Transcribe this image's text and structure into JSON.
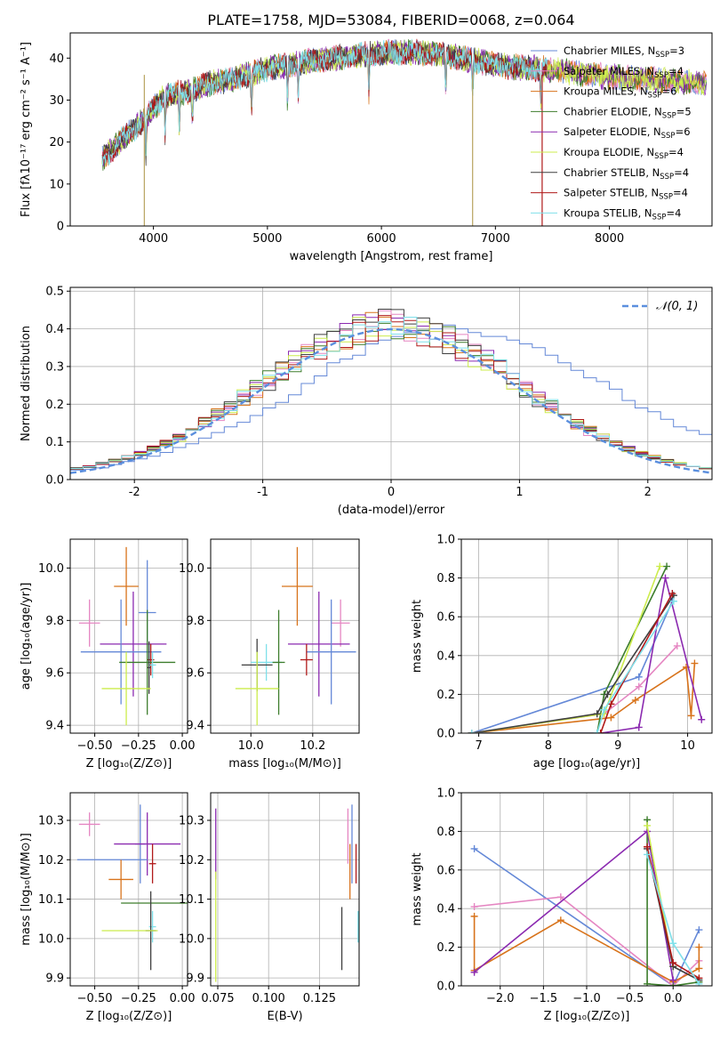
{
  "figure": {
    "title": "PLATE=1758, MJD=53084, FIBERID=0068, z=0.064"
  },
  "chart_data": [
    {
      "id": "spectrum",
      "type": "line",
      "xlabel": "wavelength [Angstrom, rest frame]",
      "ylabel": "Flux [fλ10⁻¹⁷ erg cm⁻² s⁻¹ A⁻¹]",
      "xlim": [
        3270,
        8900
      ],
      "ylim": [
        0,
        46
      ],
      "xticks": [
        4000,
        5000,
        6000,
        7000,
        8000
      ],
      "yticks": [
        0,
        10,
        20,
        30,
        40
      ],
      "grid": false,
      "legend_position": "right",
      "continuum": {
        "x": [
          3550,
          3700,
          3900,
          4100,
          4300,
          4500,
          4700,
          5000,
          5300,
          5600,
          5900,
          6200,
          6500,
          6800,
          7100,
          7400,
          7700,
          8000,
          8300,
          8600,
          8850
        ],
        "y": [
          16,
          20,
          25,
          31,
          32,
          34,
          35,
          37.5,
          39,
          40,
          41,
          41.5,
          41,
          39.5,
          38,
          37.5,
          36.5,
          35.5,
          35,
          34.5,
          34
        ]
      },
      "absorption_lines": [
        3934,
        4102,
        4227,
        4341,
        4861,
        5175,
        5270,
        5890,
        6563,
        6800,
        7400
      ],
      "series": [
        {
          "name": "Chabrier MILES, N",
          "sub": "SSP",
          "value": "=3",
          "color": "#6488d7"
        },
        {
          "name": "Salpeter MILES, N",
          "sub": "SSP",
          "value": "=4",
          "color": "#e586c2"
        },
        {
          "name": "Kroupa MILES, N",
          "sub": "SSP",
          "value": "=6",
          "color": "#d8731b"
        },
        {
          "name": "Chabrier ELODIE, N",
          "sub": "SSP",
          "value": "=5",
          "color": "#3d7d2c"
        },
        {
          "name": "Salpeter ELODIE, N",
          "sub": "SSP",
          "value": "=6",
          "color": "#8b2ab0"
        },
        {
          "name": "Kroupa ELODIE, N",
          "sub": "SSP",
          "value": "=4",
          "color": "#ccec4c"
        },
        {
          "name": "Chabrier STELIB, N",
          "sub": "SSP",
          "value": "=4",
          "color": "#3f3f3f"
        },
        {
          "name": "Salpeter STELIB, N",
          "sub": "SSP",
          "value": "=4",
          "color": "#b01a1a"
        },
        {
          "name": "Kroupa STELIB, N",
          "sub": "SSP",
          "value": "=4",
          "color": "#7fe0ea"
        }
      ]
    },
    {
      "id": "residual-histogram",
      "type": "bar",
      "xlabel": "(data-model)/error",
      "ylabel": "Normed distribution",
      "xlim": [
        -2.5,
        2.5
      ],
      "ylim": [
        0,
        0.51
      ],
      "xticks": [
        -2,
        -1,
        0,
        1,
        2
      ],
      "yticks": [
        0.0,
        0.1,
        0.2,
        0.3,
        0.4,
        0.5
      ],
      "grid": true,
      "bin_width": 0.1,
      "bin_start": -2.5,
      "reference_curve": {
        "label": "𝒩(0, 1)",
        "mean": 0,
        "sigma": 1,
        "color": "#5b8fde"
      },
      "legend_position": "top-right",
      "series": [
        {
          "name": "Chabrier MILES",
          "color": "#6488d7",
          "values": [
            0.025,
            0.027,
            0.031,
            0.04,
            0.048,
            0.055,
            0.062,
            0.072,
            0.085,
            0.095,
            0.11,
            0.125,
            0.14,
            0.152,
            0.17,
            0.19,
            0.205,
            0.225,
            0.255,
            0.275,
            0.31,
            0.32,
            0.33,
            0.36,
            0.37,
            0.38,
            0.39,
            0.395,
            0.4,
            0.41,
            0.4,
            0.39,
            0.38,
            0.38,
            0.37,
            0.36,
            0.35,
            0.33,
            0.31,
            0.29,
            0.27,
            0.26,
            0.24,
            0.21,
            0.19,
            0.18,
            0.16,
            0.14,
            0.13,
            0.12
          ]
        }
      ]
    },
    {
      "id": "age-vs-Z",
      "type": "scatter",
      "xlabel": "Z [log₁₀(Z/Z⊙)]",
      "ylabel": "age  [log₁₀(age/yr)]",
      "xlim": [
        -0.64,
        0.03
      ],
      "ylim": [
        9.37,
        10.11
      ],
      "xticks": [
        -0.5,
        -0.25,
        0.0
      ],
      "xticklabels": [
        "−0.50",
        "−0.25",
        "0.00"
      ],
      "yticks": [
        9.4,
        9.6,
        9.8,
        10.0
      ],
      "grid": true,
      "points": [
        {
          "x": -0.32,
          "y": 9.93,
          "xerr": 0.07,
          "yerr": 0.15,
          "color": "#d8731b"
        },
        {
          "x": -0.2,
          "y": 9.83,
          "xerr": 0.05,
          "yerr": 0.2,
          "color": "#6488d7"
        },
        {
          "x": -0.53,
          "y": 9.79,
          "xerr": 0.06,
          "yerr": 0.09,
          "color": "#e586c2"
        },
        {
          "x": -0.28,
          "y": 9.71,
          "xerr": 0.19,
          "yerr": 0.2,
          "color": "#8b2ab0"
        },
        {
          "x": -0.35,
          "y": 9.68,
          "xerr": 0.23,
          "yerr": 0.2,
          "color": "#6488d7"
        },
        {
          "x": -0.18,
          "y": 9.65,
          "xerr": 0.02,
          "yerr": 0.06,
          "color": "#b01a1a"
        },
        {
          "x": -0.2,
          "y": 9.64,
          "xerr": 0.16,
          "yerr": 0.2,
          "color": "#3d7d2c"
        },
        {
          "x": -0.17,
          "y": 9.63,
          "xerr": 0.02,
          "yerr": 0.05,
          "color": "#7fe0ea"
        },
        {
          "x": -0.19,
          "y": 9.62,
          "xerr": 0.01,
          "yerr": 0.1,
          "color": "#3f3f3f"
        },
        {
          "x": -0.32,
          "y": 9.54,
          "xerr": 0.14,
          "yerr": 0.14,
          "color": "#ccec4c"
        }
      ]
    },
    {
      "id": "age-vs-mass",
      "type": "scatter",
      "xlabel": "mass [log₁₀(M/M⊙)]",
      "ylabel": "",
      "xlim": [
        9.87,
        10.35
      ],
      "ylim": [
        9.37,
        10.11
      ],
      "xticks": [
        10.0,
        10.2
      ],
      "xticklabels": [
        "10.0",
        "10.2"
      ],
      "yticks": [
        9.4,
        9.6,
        9.8,
        10.0
      ],
      "grid": true,
      "points": [
        {
          "x": 10.15,
          "y": 9.93,
          "xerr": 0.05,
          "yerr": 0.15,
          "color": "#d8731b"
        },
        {
          "x": 10.29,
          "y": 9.79,
          "xerr": 0.03,
          "yerr": 0.09,
          "color": "#e586c2"
        },
        {
          "x": 10.22,
          "y": 9.71,
          "xerr": 0.1,
          "yerr": 0.2,
          "color": "#8b2ab0"
        },
        {
          "x": 10.26,
          "y": 9.68,
          "xerr": 0.08,
          "yerr": 0.2,
          "color": "#6488d7"
        },
        {
          "x": 10.18,
          "y": 9.65,
          "xerr": 0.02,
          "yerr": 0.06,
          "color": "#b01a1a"
        },
        {
          "x": 10.05,
          "y": 9.64,
          "xerr": 0.05,
          "yerr": 0.07,
          "color": "#7fe0ea"
        },
        {
          "x": 10.09,
          "y": 9.64,
          "xerr": 0.02,
          "yerr": 0.2,
          "color": "#3d7d2c"
        },
        {
          "x": 10.02,
          "y": 9.63,
          "xerr": 0.05,
          "yerr": 0.1,
          "color": "#3f3f3f"
        },
        {
          "x": 10.02,
          "y": 9.54,
          "xerr": 0.07,
          "yerr": 0.14,
          "color": "#ccec4c"
        }
      ]
    },
    {
      "id": "mass-weight-vs-age",
      "type": "line",
      "xlabel": "age  [log₁₀(age/yr)]",
      "ylabel": "mass weight",
      "xlim": [
        6.75,
        10.35
      ],
      "ylim": [
        0,
        1.0
      ],
      "xticks": [
        7,
        8,
        9,
        10
      ],
      "yticks": [
        0.0,
        0.2,
        0.4,
        0.6,
        0.8,
        1.0
      ],
      "grid": true,
      "series": [
        {
          "name": "Chabrier MILES",
          "color": "#6488d7",
          "x": [
            6.9,
            9.3,
            9.78
          ],
          "y": [
            0.0,
            0.29,
            0.68
          ]
        },
        {
          "name": "Salpeter MILES",
          "color": "#e586c2",
          "x": [
            6.9,
            8.8,
            9.3,
            9.85
          ],
          "y": [
            0.0,
            0.1,
            0.24,
            0.45
          ]
        },
        {
          "name": "Kroupa MILES",
          "color": "#d8731b",
          "x": [
            6.9,
            8.9,
            9.25,
            9.98,
            10.05,
            10.1
          ],
          "y": [
            0.0,
            0.08,
            0.17,
            0.34,
            0.09,
            0.36
          ]
        },
        {
          "name": "Chabrier ELODIE",
          "color": "#3d7d2c",
          "x": [
            6.9,
            8.7,
            8.8,
            9.7
          ],
          "y": [
            0.0,
            0.0,
            0.2,
            0.86
          ]
        },
        {
          "name": "Salpeter ELODIE",
          "color": "#8b2ab0",
          "x": [
            6.9,
            8.75,
            9.3,
            9.68,
            10.2
          ],
          "y": [
            0.0,
            0.0,
            0.03,
            0.8,
            0.07
          ]
        },
        {
          "name": "Kroupa ELODIE",
          "color": "#ccec4c",
          "x": [
            6.9,
            8.8,
            9.6
          ],
          "y": [
            0.0,
            0.1,
            0.86
          ]
        },
        {
          "name": "Chabrier STELIB",
          "color": "#3f3f3f",
          "x": [
            6.9,
            8.7,
            8.85,
            9.8
          ],
          "y": [
            0.0,
            0.1,
            0.2,
            0.71
          ]
        },
        {
          "name": "Salpeter STELIB",
          "color": "#b01a1a",
          "x": [
            6.9,
            8.75,
            8.9,
            9.78
          ],
          "y": [
            0.0,
            0.0,
            0.15,
            0.72
          ]
        },
        {
          "name": "Kroupa STELIB",
          "color": "#7fe0ea",
          "x": [
            6.9,
            8.7,
            8.8,
            9.8
          ],
          "y": [
            0.0,
            0.0,
            0.12,
            0.68
          ]
        }
      ]
    },
    {
      "id": "mass-vs-Z",
      "type": "scatter",
      "xlabel": "Z [log₁₀(Z/Z⊙)]",
      "ylabel": "mass [log₁₀(M/M⊙)]",
      "xlim": [
        -0.64,
        0.03
      ],
      "ylim": [
        9.88,
        10.37
      ],
      "xticks": [
        -0.5,
        -0.25,
        0.0
      ],
      "xticklabels": [
        "−0.50",
        "−0.25",
        "0.00"
      ],
      "yticks": [
        9.9,
        10.0,
        10.1,
        10.2,
        10.3
      ],
      "grid": true,
      "points": [
        {
          "x": -0.53,
          "y": 10.29,
          "xerr": 0.06,
          "yerr": 0.03,
          "color": "#e586c2"
        },
        {
          "x": -0.24,
          "y": 10.24,
          "xerr": 0.03,
          "yerr": 0.1,
          "color": "#6488d7"
        },
        {
          "x": -0.2,
          "y": 10.24,
          "xerr": 0.19,
          "yerr": 0.08,
          "color": "#8b2ab0"
        },
        {
          "x": -0.4,
          "y": 10.2,
          "xerr": 0.2,
          "yerr": 0.0,
          "color": "#6488d7"
        },
        {
          "x": -0.17,
          "y": 10.19,
          "xerr": 0.02,
          "yerr": 0.05,
          "color": "#b01a1a"
        },
        {
          "x": -0.35,
          "y": 10.15,
          "xerr": 0.07,
          "yerr": 0.05,
          "color": "#d8731b"
        },
        {
          "x": -0.16,
          "y": 10.09,
          "xerr": 0.19,
          "yerr": 0.0,
          "color": "#3d7d2c"
        },
        {
          "x": -0.17,
          "y": 10.03,
          "xerr": 0.02,
          "yerr": 0.04,
          "color": "#7fe0ea"
        },
        {
          "x": -0.18,
          "y": 10.02,
          "xerr": 0.03,
          "yerr": 0.1,
          "color": "#3f3f3f"
        },
        {
          "x": -0.3,
          "y": 10.02,
          "xerr": 0.16,
          "yerr": 0.0,
          "color": "#ccec4c"
        }
      ]
    },
    {
      "id": "mass-vs-ebv",
      "type": "scatter",
      "xlabel": "E(B-V)",
      "ylabel": "",
      "xlim": [
        0.0715,
        0.1445
      ],
      "ylim": [
        9.88,
        10.37
      ],
      "xticks": [
        0.075,
        0.1,
        0.125
      ],
      "xticklabels": [
        "0.075",
        "0.100",
        "0.125"
      ],
      "yticks": [
        9.9,
        10.0,
        10.1,
        10.2,
        10.3
      ],
      "grid": true,
      "points": [
        {
          "x": 0.074,
          "y": 10.24,
          "xerr": 0,
          "yerr": 0.09,
          "color": "#8b2ab0"
        },
        {
          "x": 0.074,
          "y": 10.03,
          "xerr": 0,
          "yerr": 0.14,
          "color": "#ccec4c"
        },
        {
          "x": 0.139,
          "y": 10.26,
          "xerr": 0,
          "yerr": 0.07,
          "color": "#e586c2"
        },
        {
          "x": 0.141,
          "y": 10.24,
          "xerr": 0,
          "yerr": 0.1,
          "color": "#6488d7"
        },
        {
          "x": 0.143,
          "y": 10.19,
          "xerr": 0,
          "yerr": 0.05,
          "color": "#b01a1a"
        },
        {
          "x": 0.14,
          "y": 10.17,
          "xerr": 0,
          "yerr": 0.07,
          "color": "#d8731b"
        },
        {
          "x": 0.136,
          "y": 10.0,
          "xerr": 0,
          "yerr": 0.08,
          "color": "#3f3f3f"
        },
        {
          "x": 0.144,
          "y": 10.03,
          "xerr": 0,
          "yerr": 0.04,
          "color": "#7fe0ea"
        }
      ]
    },
    {
      "id": "mass-weight-vs-Z",
      "type": "line",
      "xlabel": "Z [log₁₀(Z/Z⊙)]",
      "ylabel": "mass weight",
      "xlim": [
        -2.45,
        0.45
      ],
      "ylim": [
        0,
        1.0
      ],
      "xticks": [
        -2.0,
        -1.5,
        -1.0,
        -0.5,
        0.0
      ],
      "xticklabels": [
        "−2.0",
        "−1.5",
        "−1.0",
        "−0.5",
        "0.0"
      ],
      "yticks": [
        0.0,
        0.2,
        0.4,
        0.6,
        0.8,
        1.0
      ],
      "grid": true,
      "series": [
        {
          "name": "Chabrier MILES",
          "color": "#6488d7",
          "x": [
            -2.3,
            0.0,
            0.3
          ],
          "y": [
            0.71,
            0.0,
            0.29
          ]
        },
        {
          "name": "Salpeter MILES",
          "color": "#e586c2",
          "x": [
            -2.3,
            -1.3,
            0.0,
            0.3
          ],
          "y": [
            0.41,
            0.46,
            0.0,
            0.13
          ]
        },
        {
          "name": "Kroupa MILES",
          "color": "#d8731b",
          "x": [
            -2.3,
            -2.3,
            -1.3,
            0.0,
            0.3,
            0.3
          ],
          "y": [
            0.36,
            0.08,
            0.34,
            0.02,
            0.09,
            0.2
          ]
        },
        {
          "name": "Chabrier ELODIE",
          "color": "#3d7d2c",
          "x": [
            -0.3,
            -0.3,
            0.0,
            0.3
          ],
          "y": [
            0.86,
            0.01,
            0.0,
            0.02
          ]
        },
        {
          "name": "Salpeter ELODIE",
          "color": "#8b2ab0",
          "x": [
            -2.3,
            -0.3,
            0.0
          ],
          "y": [
            0.07,
            0.8,
            0.03
          ]
        },
        {
          "name": "Kroupa ELODIE",
          "color": "#ccec4c",
          "x": [
            -0.3,
            0.0
          ],
          "y": [
            0.83,
            0.1
          ]
        },
        {
          "name": "Chabrier STELIB",
          "color": "#3f3f3f",
          "x": [
            -0.3,
            0.0,
            0.3
          ],
          "y": [
            0.71,
            0.1,
            0.03
          ]
        },
        {
          "name": "Salpeter STELIB",
          "color": "#b01a1a",
          "x": [
            -0.3,
            0.0,
            0.3
          ],
          "y": [
            0.72,
            0.12,
            0.04
          ]
        },
        {
          "name": "Kroupa STELIB",
          "color": "#7fe0ea",
          "x": [
            -0.3,
            0.0,
            0.3
          ],
          "y": [
            0.68,
            0.22,
            0.01
          ]
        }
      ]
    }
  ]
}
